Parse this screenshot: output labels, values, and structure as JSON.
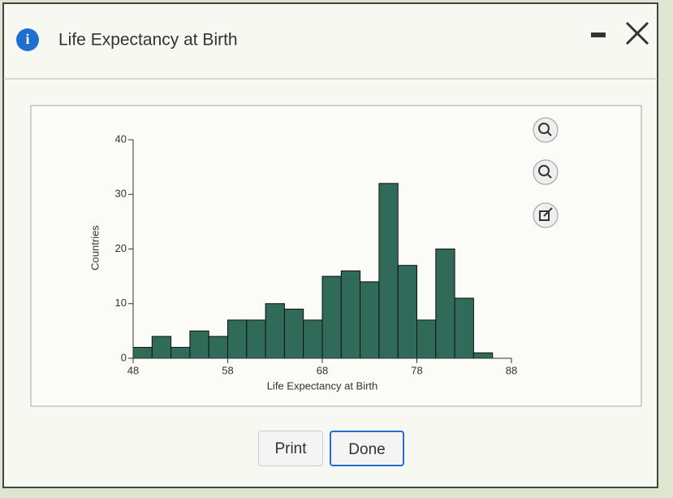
{
  "dialog": {
    "title": "Life Expectancy at Birth",
    "buttons": [
      "Print",
      "Done"
    ]
  },
  "chart_data": {
    "type": "histogram",
    "xlabel": "Life Expectancy at Birth",
    "ylabel": "Countries",
    "bins": [
      48,
      50,
      52,
      54,
      56,
      58,
      60,
      62,
      64,
      66,
      68,
      70,
      72,
      74,
      76,
      78,
      80,
      82,
      84,
      86
    ],
    "counts": [
      2,
      4,
      2,
      5,
      4,
      7,
      7,
      10,
      9,
      7,
      15,
      16,
      14,
      32,
      17,
      7,
      20,
      11,
      1
    ],
    "color": "#2f6b58",
    "xlim": [
      48,
      88
    ],
    "xticks": [
      48,
      58,
      68,
      78,
      88
    ],
    "ylim": [
      0,
      40
    ],
    "yticks": [
      0,
      10,
      20,
      30,
      40
    ]
  }
}
